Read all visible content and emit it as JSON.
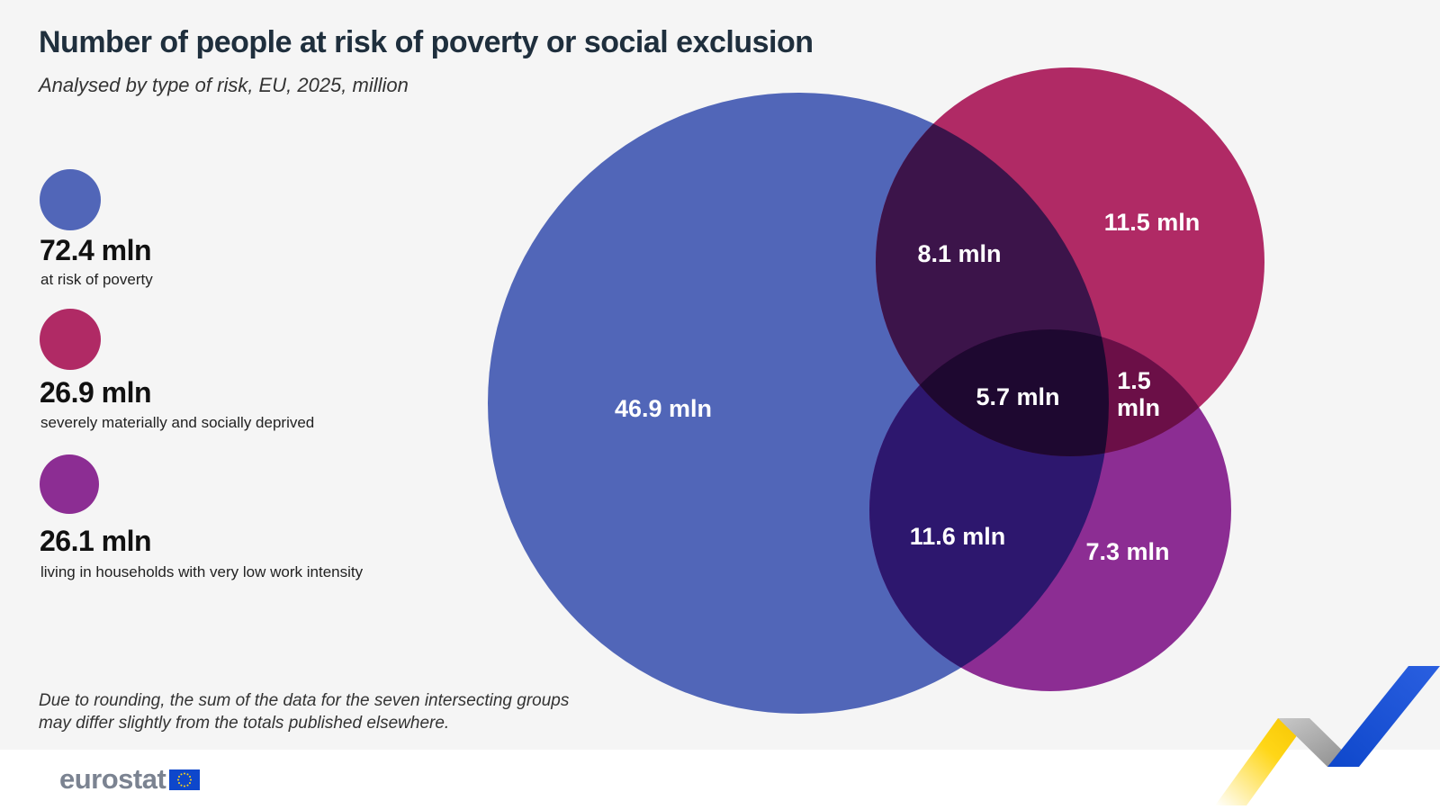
{
  "title": "Number of people at risk of poverty or social exclusion",
  "subtitle": "Analysed by type of risk, EU, 2025, million",
  "legend": [
    {
      "value": "72.4 mln",
      "label": "at risk of poverty",
      "color": "#5166b8"
    },
    {
      "value": "26.9 mln",
      "label": "severely materially and socially deprived",
      "color": "#b02a65"
    },
    {
      "value": "26.1 mln",
      "label": "living in households with very low work intensity",
      "color": "#8c2d93"
    }
  ],
  "regions": {
    "poverty_only": "46.9 mln",
    "deprived_only": "11.5 mln",
    "work_only": "7.3 mln",
    "poverty_deprived": "8.1 mln",
    "poverty_work": "11.6 mln",
    "deprived_work_line1": "1.5",
    "deprived_work_line2": "mln",
    "all_three": "5.7 mln"
  },
  "colors": {
    "poverty": "#5166b8",
    "deprived": "#b02a65",
    "work": "#8c2d93",
    "poverty_deprived": "#3c144a",
    "poverty_work": "#2d176e",
    "deprived_work": "#6b0f47",
    "all_three": "#1e0830"
  },
  "footnote": "Due to rounding, the sum of the data for the seven intersecting groups may differ slightly from the totals published elsewhere.",
  "logo": {
    "text": "eurostat",
    "flag_icon": "eu-flag-icon"
  }
}
